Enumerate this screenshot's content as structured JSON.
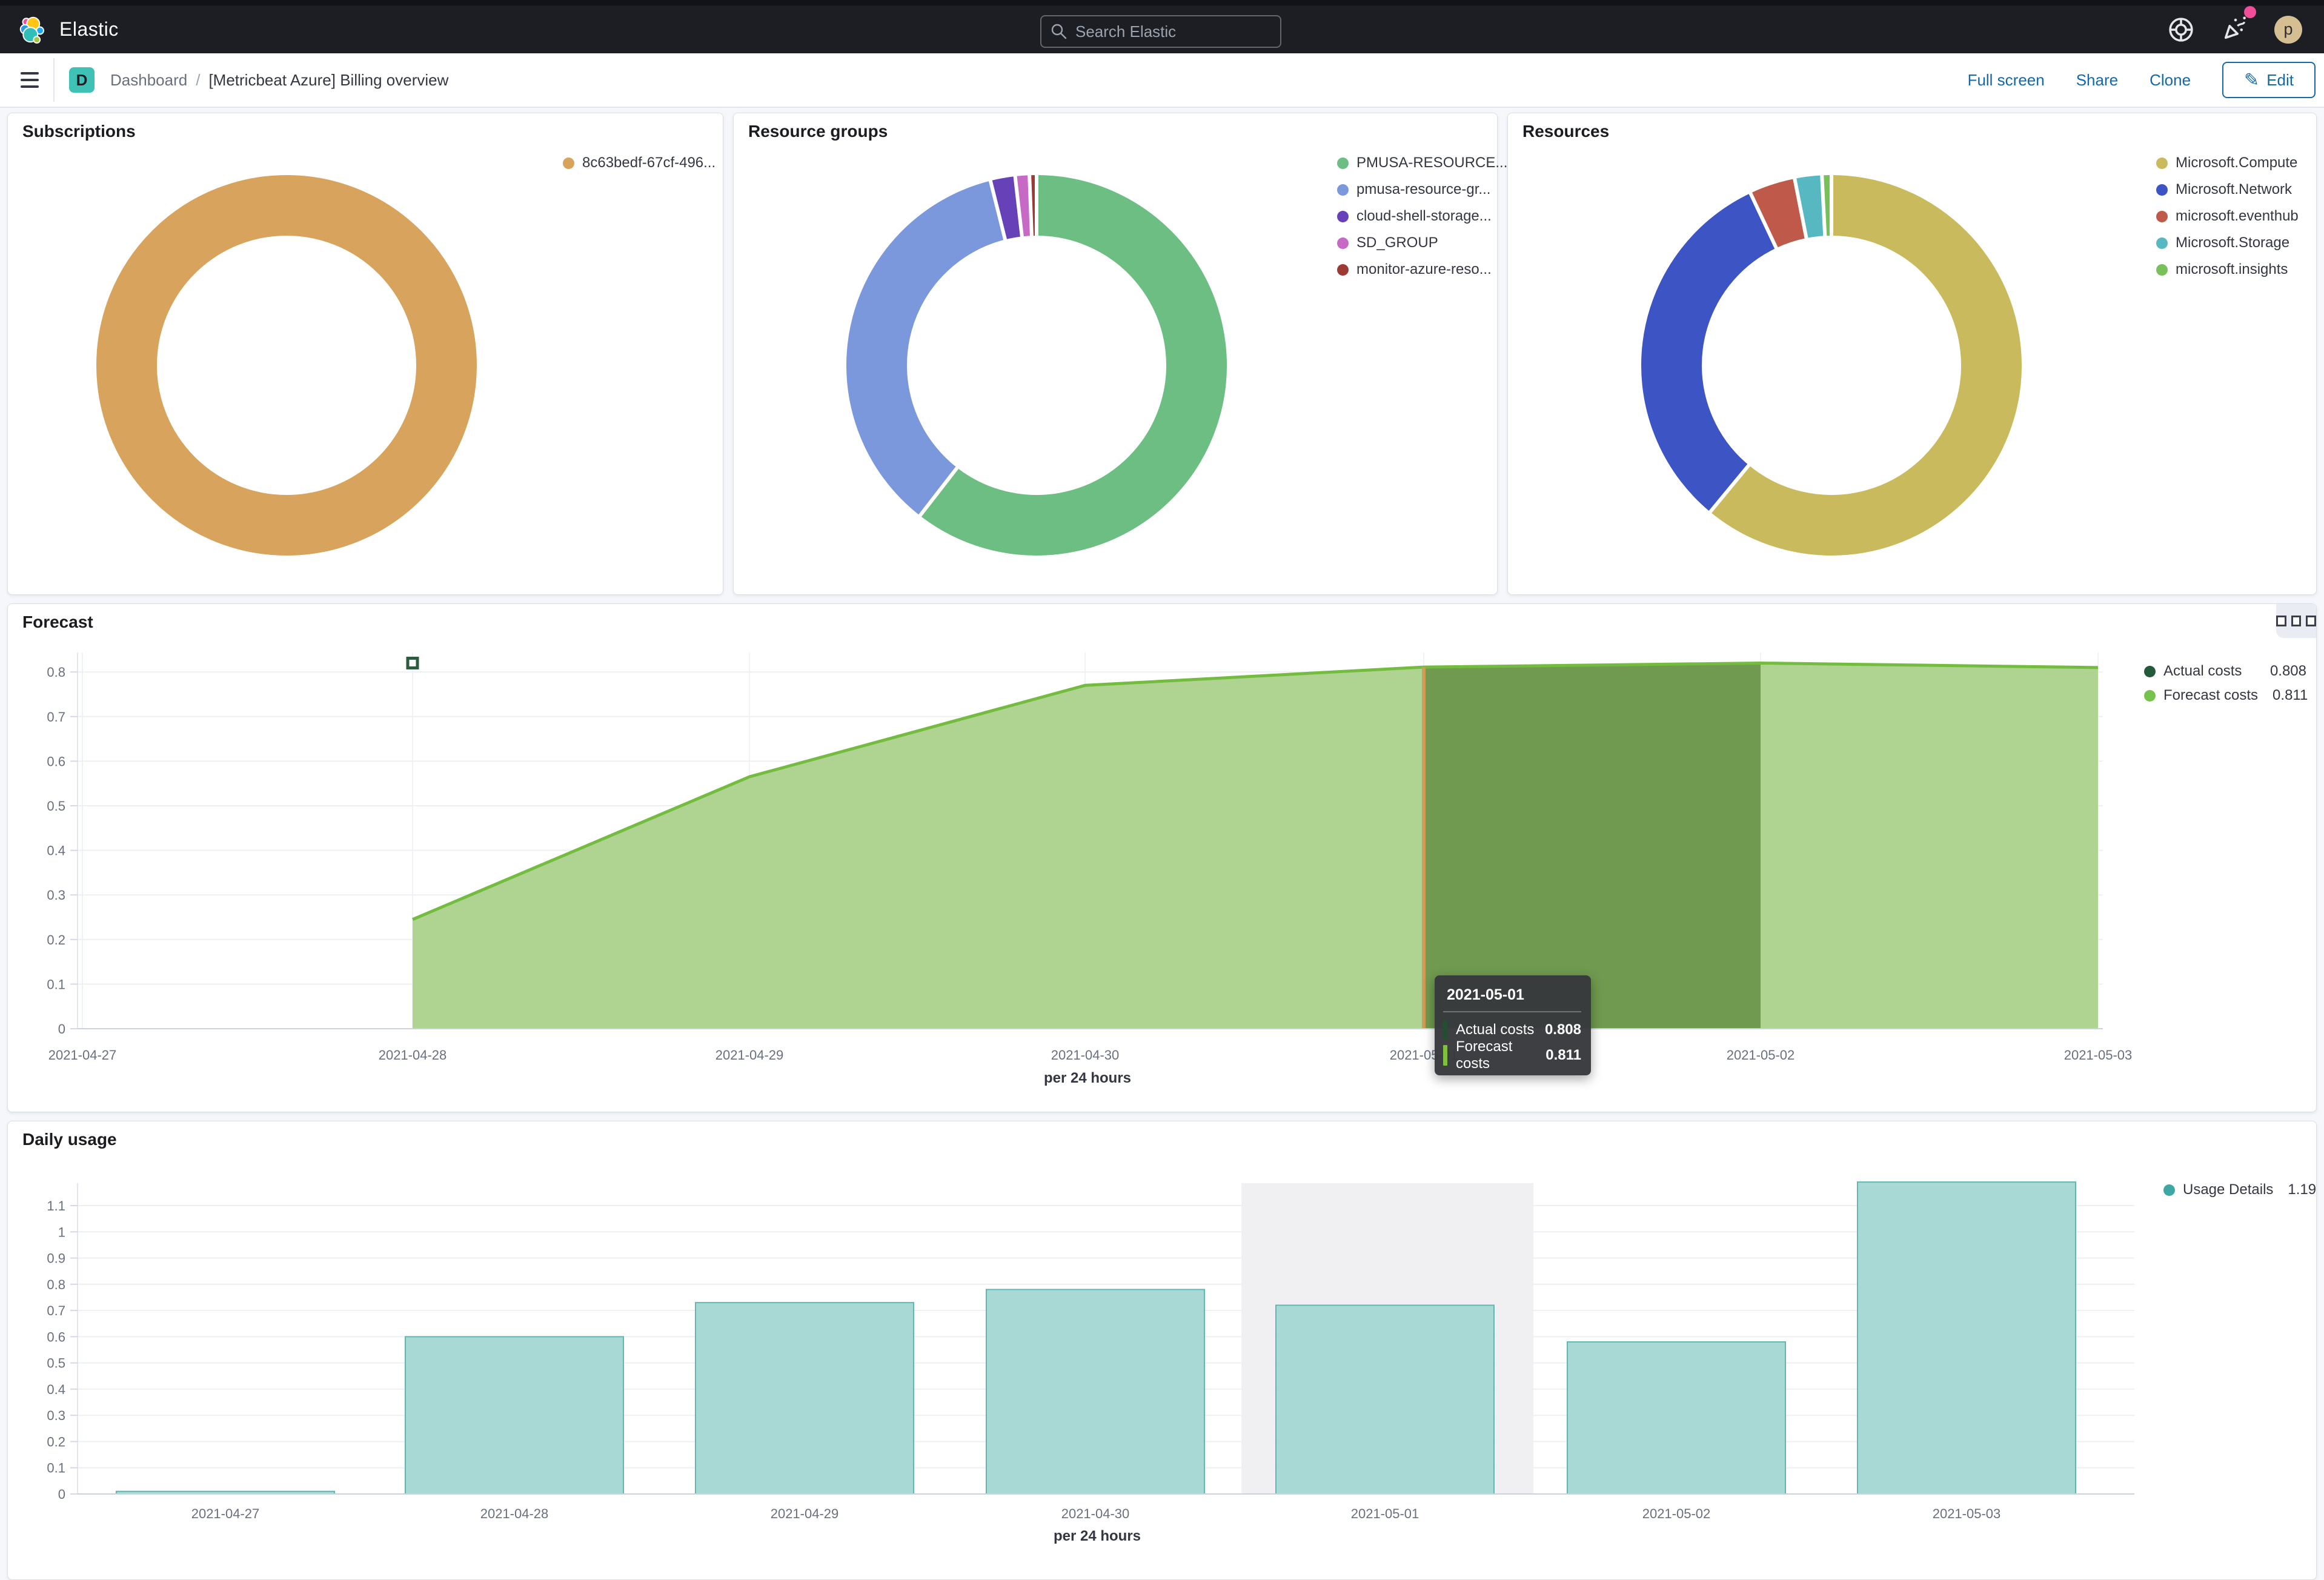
{
  "header": {
    "brand": "Elastic",
    "search_placeholder": "Search Elastic",
    "avatar_initial": "p"
  },
  "nav": {
    "space_initial": "D",
    "breadcrumb_root": "Dashboard",
    "breadcrumb_separator": "/",
    "breadcrumb_current": "[Metricbeat Azure] Billing overview",
    "full_screen": "Full screen",
    "share": "Share",
    "clone": "Clone",
    "edit": "Edit"
  },
  "panels": {
    "subscriptions": {
      "title": "Subscriptions"
    },
    "resource_groups": {
      "title": "Resource groups"
    },
    "resources": {
      "title": "Resources"
    },
    "forecast": {
      "title": "Forecast",
      "legend": [
        {
          "label": "Actual costs",
          "value": "0.808",
          "color": "#24593A"
        },
        {
          "label": "Forecast costs",
          "value": "0.811",
          "color": "#77C24B"
        }
      ],
      "tooltip": {
        "date": "2021-05-01",
        "rows": [
          {
            "label": "Actual costs",
            "value": "0.808",
            "color": "#254D32"
          },
          {
            "label": "Forecast costs",
            "value": "0.811",
            "color": "#7FC13F"
          }
        ]
      }
    },
    "daily_usage": {
      "title": "Daily usage",
      "legend": [
        {
          "label": "Usage Details",
          "value": "1.19",
          "color": "#3FA7A2"
        }
      ]
    }
  },
  "chart_data": [
    {
      "type": "pie",
      "title": "Subscriptions",
      "labels": [
        "8c63bedf-67cf-496..."
      ],
      "values": [
        100
      ],
      "colors": [
        "#D8A35C"
      ]
    },
    {
      "type": "pie",
      "title": "Resource groups",
      "labels": [
        "PMUSA-RESOURCE...",
        "pmusa-resource-gr...",
        "cloud-shell-storage...",
        "SD_GROUP",
        "monitor-azure-reso..."
      ],
      "values": [
        60.5,
        35.6,
        2.1,
        1.2,
        0.6
      ],
      "colors": [
        "#6CBE82",
        "#7B98DC",
        "#6741B8",
        "#C76AC6",
        "#9E3A34"
      ]
    },
    {
      "type": "pie",
      "title": "Resources",
      "labels": [
        "Microsoft.Compute",
        "Microsoft.Network",
        "microsoft.eventhub",
        "Microsoft.Storage",
        "microsoft.insights"
      ],
      "values": [
        61,
        32,
        3.9,
        2.3,
        0.8
      ],
      "colors": [
        "#C9BA5D",
        "#3C54C4",
        "#BF5A4B",
        "#58B8C2",
        "#78C15A"
      ]
    },
    {
      "type": "area",
      "title": "Forecast",
      "x": [
        "2021-04-27",
        "2021-04-28",
        "2021-04-29",
        "2021-04-30",
        "2021-05-01",
        "2021-05-02",
        "2021-05-03"
      ],
      "series": [
        {
          "name": "Forecast costs",
          "values": [
            null,
            0.245,
            0.565,
            0.77,
            0.811,
            0.82,
            0.81
          ]
        },
        {
          "name": "Actual costs",
          "values": [
            null,
            0.82,
            null,
            null,
            0.808,
            null,
            null
          ]
        }
      ],
      "ylim": [
        0,
        0.8
      ],
      "yticks": [
        "0",
        "0.1",
        "0.2",
        "0.3",
        "0.4",
        "0.5",
        "0.6",
        "0.7",
        "0.8"
      ],
      "xlabel": "per 24 hours",
      "highlight_band": [
        "2021-05-01",
        "2021-05-02"
      ],
      "hovered_x": "2021-05-01"
    },
    {
      "type": "bar",
      "title": "Daily usage",
      "x": [
        "2021-04-27",
        "2021-04-28",
        "2021-04-29",
        "2021-04-30",
        "2021-05-01",
        "2021-05-02",
        "2021-05-03"
      ],
      "values": [
        0.01,
        0.6,
        0.73,
        0.78,
        0.72,
        0.58,
        1.19
      ],
      "ylim": [
        0,
        1.1
      ],
      "yticks": [
        "0",
        "0.1",
        "0.2",
        "0.3",
        "0.4",
        "0.5",
        "0.6",
        "0.7",
        "0.8",
        "0.9",
        "1",
        "1.1"
      ],
      "xlabel": "per 24 hours",
      "highlight_x": "2021-05-01"
    }
  ]
}
